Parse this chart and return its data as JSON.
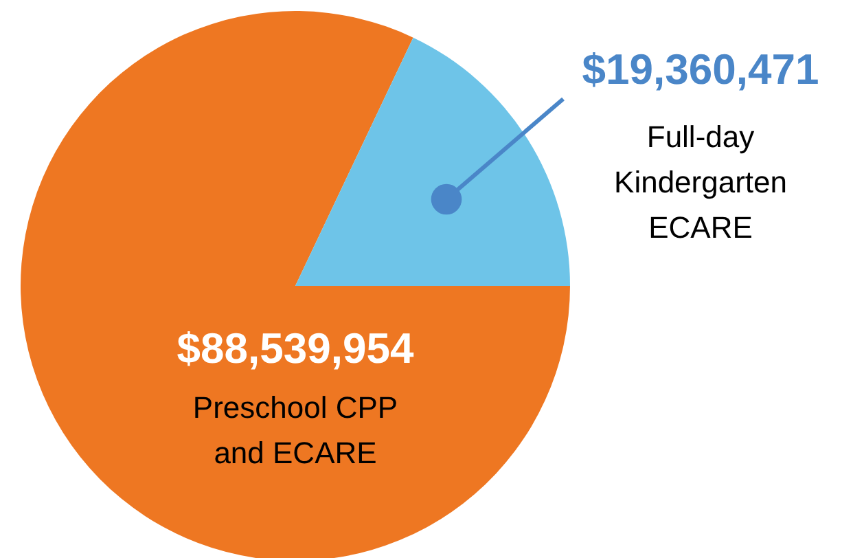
{
  "chart_data": {
    "type": "pie",
    "categories": [
      "Preschool CPP\nand ECARE",
      "Full-day\nKindergarten\nECARE"
    ],
    "values": [
      88539954,
      19360471
    ],
    "colors": [
      "#ee7722",
      "#6ec4e8"
    ],
    "value_labels": [
      "$88,539,954",
      "$19,360,471"
    ]
  }
}
